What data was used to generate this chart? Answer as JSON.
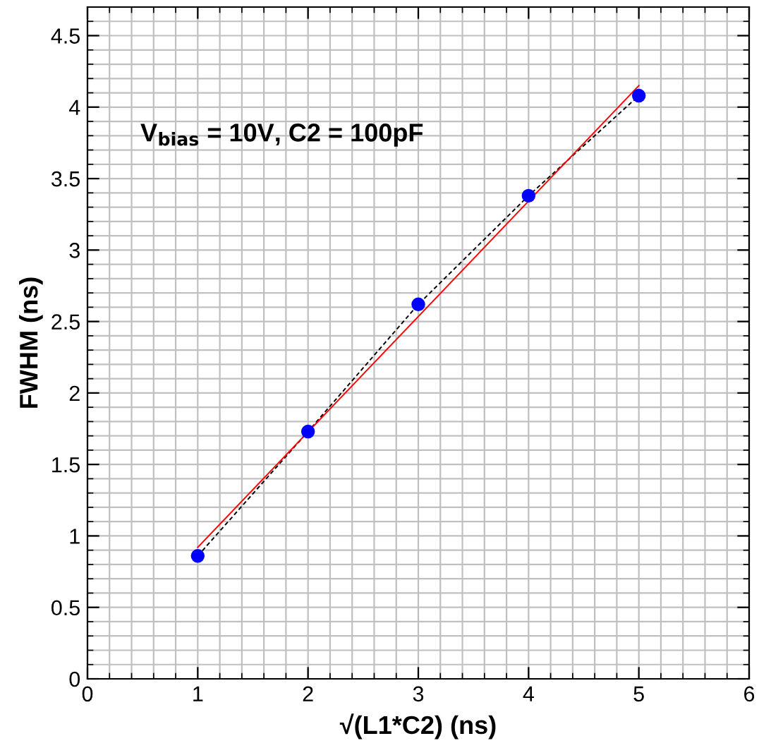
{
  "chart_data": {
    "type": "scatter",
    "x": [
      1,
      2,
      3,
      4,
      5
    ],
    "series": [
      {
        "color": "#0000ff",
        "marker": "circle",
        "values": [
          0.86,
          1.73,
          2.62,
          3.38,
          4.08
        ]
      },
      {
        "type": "line",
        "color": "#000000",
        "line_style": "dashed",
        "marker": "none",
        "values": [
          0.86,
          1.73,
          2.62,
          3.38,
          4.08
        ]
      },
      {
        "type": "line",
        "color": "#ff0000",
        "line_style": "solid",
        "marker": "none",
        "x": [
          1,
          5
        ],
        "values": [
          0.92,
          4.15
        ]
      }
    ],
    "xlabel": "√(L1*C2) (ns)",
    "ylabel": "FWHM (ns)",
    "annotations": [
      "V$_{bias}$ = 10V, C2 = 100pF"
    ],
    "xlim": [
      0,
      6
    ],
    "xticks": [
      0,
      1,
      2,
      3,
      4,
      5,
      6
    ],
    "ylim": [
      0,
      4.7
    ],
    "yticks": [
      0,
      0.5,
      1,
      1.5,
      2,
      2.5,
      3,
      3.5,
      4,
      4.5
    ],
    "grid": true
  }
}
